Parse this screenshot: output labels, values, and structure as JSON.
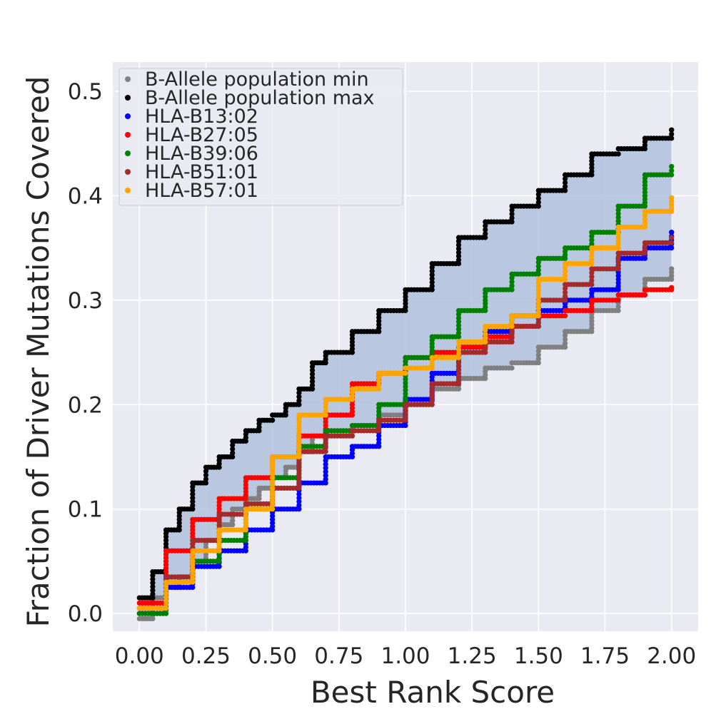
{
  "chart_data": {
    "type": "scatter",
    "title": "",
    "xlabel": "Best Rank Score",
    "ylabel": "Fraction of Driver Mutations Covered",
    "xlim": [
      -0.1,
      2.1
    ],
    "ylim": [
      -0.017,
      0.528
    ],
    "x_ticks": [
      0.0,
      0.25,
      0.5,
      0.75,
      1.0,
      1.25,
      1.5,
      1.75,
      2.0
    ],
    "x_tick_labels": [
      "0.00",
      "0.25",
      "0.50",
      "0.75",
      "1.00",
      "1.25",
      "1.50",
      "1.75",
      "2.00"
    ],
    "y_ticks": [
      0.0,
      0.1,
      0.2,
      0.3,
      0.4,
      0.5
    ],
    "y_tick_labels": [
      "0.0",
      "0.1",
      "0.2",
      "0.3",
      "0.4",
      "0.5"
    ],
    "grid": true,
    "background": "#EAEAF2",
    "legend_position": "top-left",
    "band": {
      "fill": "#B4C3DE",
      "between": [
        "B-Allele population min",
        "B-Allele population max"
      ]
    },
    "series": [
      {
        "name": "B-Allele population min",
        "color": "#808080",
        "x": [
          0.0,
          0.05,
          0.1,
          0.15,
          0.2,
          0.25,
          0.3,
          0.35,
          0.4,
          0.45,
          0.5,
          0.55,
          0.6,
          0.65,
          0.7,
          0.8,
          0.9,
          1.0,
          1.1,
          1.2,
          1.3,
          1.4,
          1.5,
          1.6,
          1.7,
          1.8,
          1.9,
          2.0
        ],
        "y": [
          -0.005,
          0.015,
          0.025,
          0.035,
          0.05,
          0.07,
          0.085,
          0.1,
          0.11,
          0.12,
          0.13,
          0.14,
          0.155,
          0.17,
          0.17,
          0.18,
          0.19,
          0.2,
          0.215,
          0.225,
          0.235,
          0.24,
          0.255,
          0.27,
          0.29,
          0.305,
          0.32,
          0.33
        ]
      },
      {
        "name": "B-Allele population max",
        "color": "#000000",
        "x": [
          0.0,
          0.05,
          0.1,
          0.15,
          0.2,
          0.25,
          0.3,
          0.35,
          0.4,
          0.45,
          0.5,
          0.55,
          0.6,
          0.65,
          0.7,
          0.8,
          0.9,
          1.0,
          1.1,
          1.2,
          1.3,
          1.4,
          1.5,
          1.6,
          1.7,
          1.8,
          1.9,
          2.0
        ],
        "y": [
          0.015,
          0.04,
          0.08,
          0.1,
          0.125,
          0.14,
          0.15,
          0.165,
          0.175,
          0.185,
          0.19,
          0.2,
          0.215,
          0.24,
          0.25,
          0.27,
          0.29,
          0.31,
          0.335,
          0.36,
          0.375,
          0.39,
          0.405,
          0.42,
          0.44,
          0.445,
          0.455,
          0.463
        ]
      },
      {
        "name": "HLA-B13:02",
        "color": "#0000FF",
        "x": [
          0.0,
          0.1,
          0.2,
          0.3,
          0.4,
          0.5,
          0.6,
          0.7,
          0.8,
          0.9,
          1.0,
          1.1,
          1.2,
          1.3,
          1.4,
          1.5,
          1.6,
          1.7,
          1.8,
          1.9,
          2.0
        ],
        "y": [
          0.0,
          0.025,
          0.045,
          0.06,
          0.08,
          0.1,
          0.125,
          0.15,
          0.16,
          0.18,
          0.205,
          0.23,
          0.255,
          0.27,
          0.285,
          0.29,
          0.3,
          0.31,
          0.34,
          0.35,
          0.365
        ]
      },
      {
        "name": "HLA-B27:05",
        "color": "#FF0000",
        "x": [
          0.0,
          0.1,
          0.2,
          0.3,
          0.4,
          0.5,
          0.6,
          0.7,
          0.8,
          0.9,
          1.0,
          1.1,
          1.2,
          1.3,
          1.4,
          1.5,
          1.6,
          1.7,
          1.8,
          1.9,
          2.0
        ],
        "y": [
          0.01,
          0.06,
          0.09,
          0.11,
          0.13,
          0.15,
          0.17,
          0.19,
          0.22,
          0.23,
          0.245,
          0.25,
          0.255,
          0.265,
          0.275,
          0.285,
          0.29,
          0.3,
          0.305,
          0.31,
          0.312
        ]
      },
      {
        "name": "HLA-B39:06",
        "color": "#008000",
        "x": [
          0.0,
          0.1,
          0.2,
          0.3,
          0.4,
          0.5,
          0.6,
          0.7,
          0.8,
          0.9,
          1.0,
          1.1,
          1.2,
          1.3,
          1.4,
          1.5,
          1.6,
          1.7,
          1.8,
          1.9,
          2.0
        ],
        "y": [
          0.0,
          0.03,
          0.05,
          0.07,
          0.1,
          0.13,
          0.16,
          0.175,
          0.18,
          0.2,
          0.245,
          0.265,
          0.29,
          0.31,
          0.325,
          0.34,
          0.35,
          0.365,
          0.39,
          0.42,
          0.428
        ]
      },
      {
        "name": "HLA-B51:01",
        "color": "#A52A2A",
        "x": [
          0.0,
          0.1,
          0.2,
          0.3,
          0.4,
          0.5,
          0.6,
          0.7,
          0.8,
          0.9,
          1.0,
          1.1,
          1.2,
          1.3,
          1.4,
          1.5,
          1.6,
          1.7,
          1.8,
          1.9,
          2.0
        ],
        "y": [
          0.005,
          0.035,
          0.07,
          0.095,
          0.105,
          0.12,
          0.155,
          0.17,
          0.175,
          0.185,
          0.2,
          0.22,
          0.25,
          0.26,
          0.275,
          0.3,
          0.315,
          0.33,
          0.345,
          0.355,
          0.36
        ]
      },
      {
        "name": "HLA-B57:01",
        "color": "#FFA500",
        "x": [
          0.0,
          0.1,
          0.2,
          0.3,
          0.4,
          0.5,
          0.6,
          0.7,
          0.8,
          0.9,
          1.0,
          1.1,
          1.2,
          1.3,
          1.4,
          1.5,
          1.6,
          1.7,
          1.8,
          1.9,
          2.0
        ],
        "y": [
          0.005,
          0.03,
          0.06,
          0.08,
          0.1,
          0.15,
          0.19,
          0.205,
          0.215,
          0.23,
          0.235,
          0.245,
          0.26,
          0.275,
          0.285,
          0.32,
          0.335,
          0.35,
          0.37,
          0.385,
          0.398
        ]
      }
    ]
  }
}
